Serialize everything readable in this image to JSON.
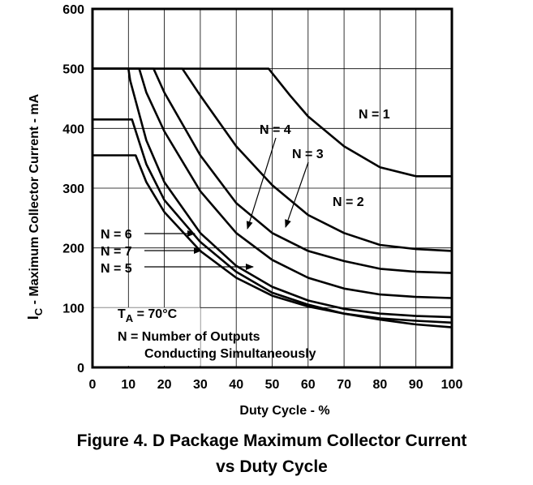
{
  "chart_data": {
    "type": "line",
    "title": "Figure 4. D Package Maximum Collector Current",
    "title_line2": "vs Duty Cycle",
    "xlabel": "Duty Cycle -  %",
    "ylabel_prefix": "I",
    "ylabel_sub": "C",
    "ylabel_rest": " - Maximum Collector Current - mA",
    "xlim": [
      0,
      100
    ],
    "ylim": [
      0,
      600
    ],
    "x_ticks": [
      0,
      10,
      20,
      30,
      40,
      50,
      60,
      70,
      80,
      90,
      100
    ],
    "y_ticks": [
      0,
      100,
      200,
      300,
      400,
      500,
      600
    ],
    "grid": true,
    "series": [
      {
        "name": "N = 1",
        "x": [
          0,
          49,
          55,
          60,
          70,
          80,
          90,
          100
        ],
        "y": [
          500,
          500,
          455,
          420,
          370,
          335,
          320,
          320
        ]
      },
      {
        "name": "N = 2",
        "x": [
          0,
          25,
          30,
          40,
          50,
          60,
          70,
          80,
          90,
          100
        ],
        "y": [
          500,
          500,
          455,
          370,
          305,
          255,
          225,
          205,
          198,
          195
        ]
      },
      {
        "name": "N = 3",
        "x": [
          0,
          17,
          20,
          30,
          40,
          50,
          60,
          70,
          80,
          90,
          100
        ],
        "y": [
          500,
          500,
          460,
          355,
          275,
          225,
          195,
          178,
          165,
          160,
          158
        ]
      },
      {
        "name": "N = 4",
        "x": [
          0,
          13,
          15,
          20,
          30,
          40,
          50,
          60,
          70,
          80,
          90,
          100
        ],
        "y": [
          500,
          500,
          460,
          395,
          295,
          225,
          180,
          150,
          132,
          122,
          118,
          116
        ]
      },
      {
        "name": "N = 5",
        "x": [
          0,
          12,
          15,
          20,
          30,
          40,
          50,
          60,
          70,
          80,
          90,
          100
        ],
        "y": [
          355,
          355,
          310,
          260,
          195,
          150,
          120,
          102,
          90,
          82,
          78,
          75
        ]
      },
      {
        "name": "N = 6",
        "x": [
          0,
          10,
          10.5,
          15,
          20,
          30,
          40,
          50,
          60,
          70,
          80,
          90,
          100
        ],
        "y": [
          500,
          500,
          480,
          380,
          310,
          225,
          170,
          135,
          112,
          98,
          90,
          86,
          84
        ]
      },
      {
        "name": "N = 7",
        "x": [
          0,
          11,
          15,
          20,
          30,
          40,
          50,
          60,
          70,
          80,
          90,
          100
        ],
        "y": [
          415,
          415,
          340,
          280,
          210,
          160,
          125,
          105,
          90,
          80,
          72,
          67
        ]
      }
    ],
    "annotations": {
      "n1": "N = 1",
      "n2": "N = 2",
      "n3": "N = 3",
      "n4": "N = 4",
      "n5": "N = 5",
      "n6": "N = 6",
      "n7": "N = 7",
      "ta_prefix": "T",
      "ta_sub": "A",
      "ta_rest": " = 70°C",
      "note1": "N = Number of Outputs",
      "note2": "Conducting Simultaneously"
    },
    "colors": {
      "line": "#000000",
      "grid": "#000000",
      "background": "#ffffff"
    }
  }
}
